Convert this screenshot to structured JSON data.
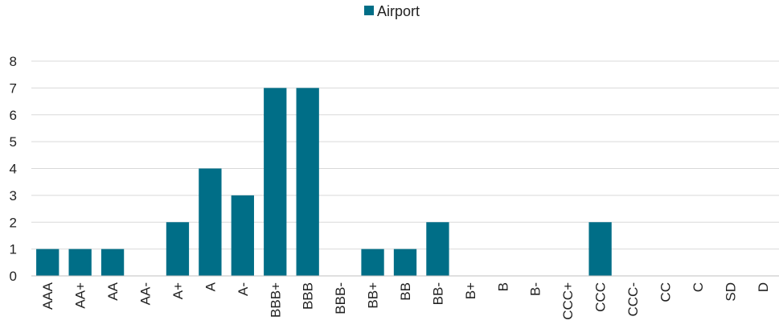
{
  "chart_data": {
    "type": "bar",
    "categories": [
      "AAA",
      "AA+",
      "AA",
      "AA-",
      "A+",
      "A",
      "A-",
      "BBB+",
      "BBB",
      "BBB-",
      "BB+",
      "BB",
      "BB-",
      "B+",
      "B",
      "B-",
      "CCC+",
      "CCC",
      "CCC-",
      "CC",
      "C",
      "SD",
      "D"
    ],
    "series": [
      {
        "name": "Airport",
        "values": [
          1,
          1,
          1,
          0,
          2,
          4,
          3,
          7,
          7,
          0,
          1,
          1,
          2,
          0,
          0,
          0,
          0,
          2,
          0,
          0,
          0,
          0,
          0
        ]
      }
    ],
    "ylim": [
      0,
      8
    ],
    "yticks": [
      0,
      1,
      2,
      3,
      4,
      5,
      6,
      7,
      8
    ],
    "grid": "horizontal",
    "legend_position": "top-center",
    "colors": {
      "bar": "#006e87",
      "grid": "#d9d9d9",
      "axis": "#bfbfbf"
    }
  }
}
